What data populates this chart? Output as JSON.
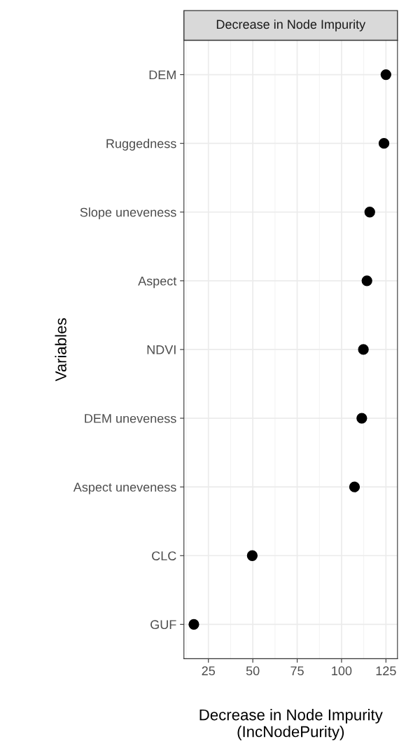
{
  "chart_data": {
    "type": "scatter",
    "title": "Decrease in Node Impurity",
    "xlabel": "Decrease in Node Impurity\n(IncNodePurity)",
    "ylabel": "Variables",
    "categories": [
      "DEM",
      "Ruggedness",
      "Slope uneveness",
      "Aspect",
      "NDVI",
      "DEM uneveness",
      "Aspect uneveness",
      "CLC",
      "GUF"
    ],
    "orientation": "horizontal",
    "values": [
      125.0,
      123.9,
      115.9,
      114.3,
      112.3,
      111.4,
      107.3,
      49.7,
      16.8
    ],
    "color": "#000000",
    "marker": "circle",
    "xlim": [
      11.2,
      131.5
    ],
    "xticks": [
      25,
      50,
      75,
      100,
      125
    ],
    "grid": true
  }
}
